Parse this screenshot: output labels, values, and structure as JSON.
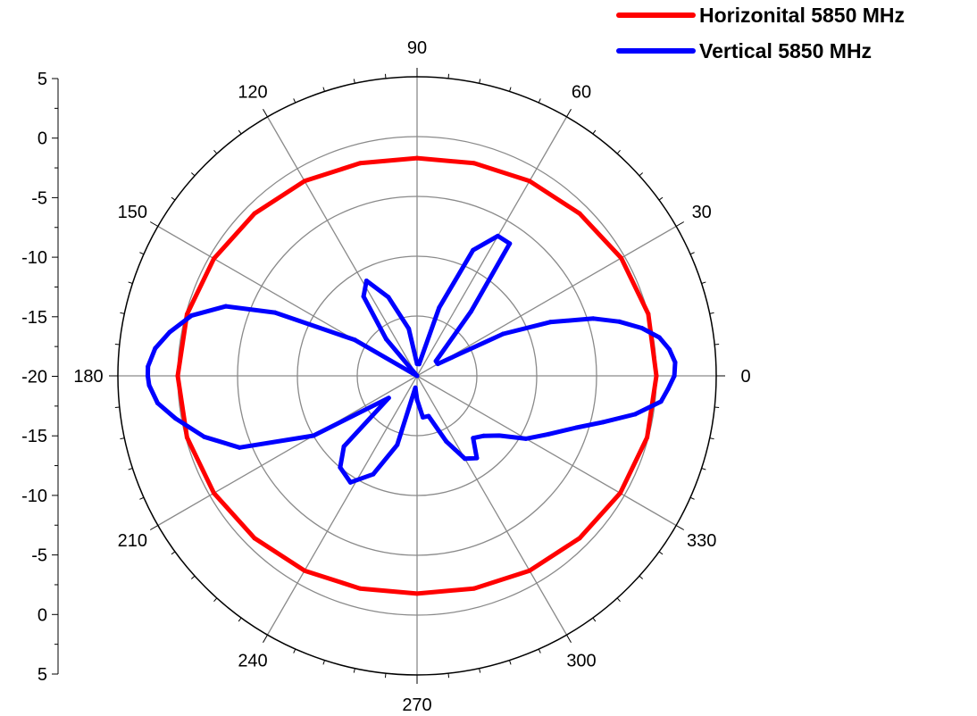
{
  "chart_data": {
    "type": "line",
    "subtype": "polar",
    "title": "",
    "radial_axis": {
      "min": -20,
      "max": 5,
      "rings": [
        -15,
        -10,
        -5,
        0
      ],
      "tick_labels": [
        "5",
        "0",
        "-5",
        "-10",
        "-15",
        "-20",
        "-15",
        "-10",
        "-5",
        "0",
        "5"
      ]
    },
    "angular_axis": {
      "unit": "degrees",
      "spoke_step": 30,
      "tick_values": [
        0,
        30,
        60,
        90,
        120,
        150,
        180,
        210,
        240,
        270,
        300,
        330
      ],
      "tick_labels": [
        "0",
        "30",
        "60",
        "90",
        "120",
        "150",
        "180",
        "210",
        "240",
        "270",
        "300",
        "330"
      ]
    },
    "legend": {
      "position": "top-right"
    },
    "grid": true,
    "series": [
      {
        "name": "Horizonital 5850 MHz",
        "color": "#ff0000",
        "angles": [
          0,
          15,
          30,
          45,
          60,
          75,
          90,
          105,
          120,
          135,
          150,
          165,
          180,
          195,
          210,
          225,
          240,
          255,
          270,
          285,
          300,
          315,
          330,
          345,
          360
        ],
        "values": [
          0,
          0,
          -0.3,
          -0.8,
          -1.2,
          -1.6,
          -1.8,
          -1.6,
          -1.2,
          -0.8,
          -0.4,
          -0.1,
          0,
          -0.1,
          -0.4,
          -0.8,
          -1.2,
          -1.6,
          -1.8,
          -1.6,
          -1.2,
          -0.8,
          -0.4,
          -0.1,
          0
        ]
      },
      {
        "name": "Vertical 5850 MHz",
        "color": "#0000ff",
        "angles": [
          0,
          3,
          6,
          9,
          12,
          15,
          18,
          22,
          26,
          30,
          38,
          50,
          55,
          60,
          66,
          72,
          80,
          90,
          100,
          110,
          118,
          124,
          130,
          140,
          150,
          156,
          160,
          165,
          170,
          174,
          178,
          180,
          182,
          186,
          190,
          196,
          202,
          210,
          218,
          224,
          230,
          238,
          246,
          254,
          262,
          270,
          278,
          286,
          294,
          300,
          306,
          312,
          318,
          324,
          330,
          336,
          342,
          346,
          350,
          354,
          357,
          360
        ],
        "values": [
          1.5,
          1.6,
          1.2,
          0.5,
          -0.8,
          -2.5,
          -4.5,
          -8,
          -12,
          -18,
          -18,
          -13,
          -6.5,
          -6.5,
          -8.5,
          -14,
          -19,
          -19,
          -16,
          -13,
          -11,
          -12,
          -16,
          -20,
          -14,
          -7,
          -3,
          -0.5,
          1,
          2,
          2.5,
          2.5,
          2.4,
          1.8,
          0.5,
          -1.5,
          -4,
          -10,
          -17,
          -11.5,
          -10,
          -9.5,
          -11,
          -14,
          -19,
          -18,
          -16.5,
          -16.5,
          -14,
          -12,
          -11.5,
          -13,
          -12.5,
          -11.5,
          -9.5,
          -8,
          -6,
          -4,
          -1.5,
          0.5,
          1,
          1.5
        ]
      }
    ]
  }
}
